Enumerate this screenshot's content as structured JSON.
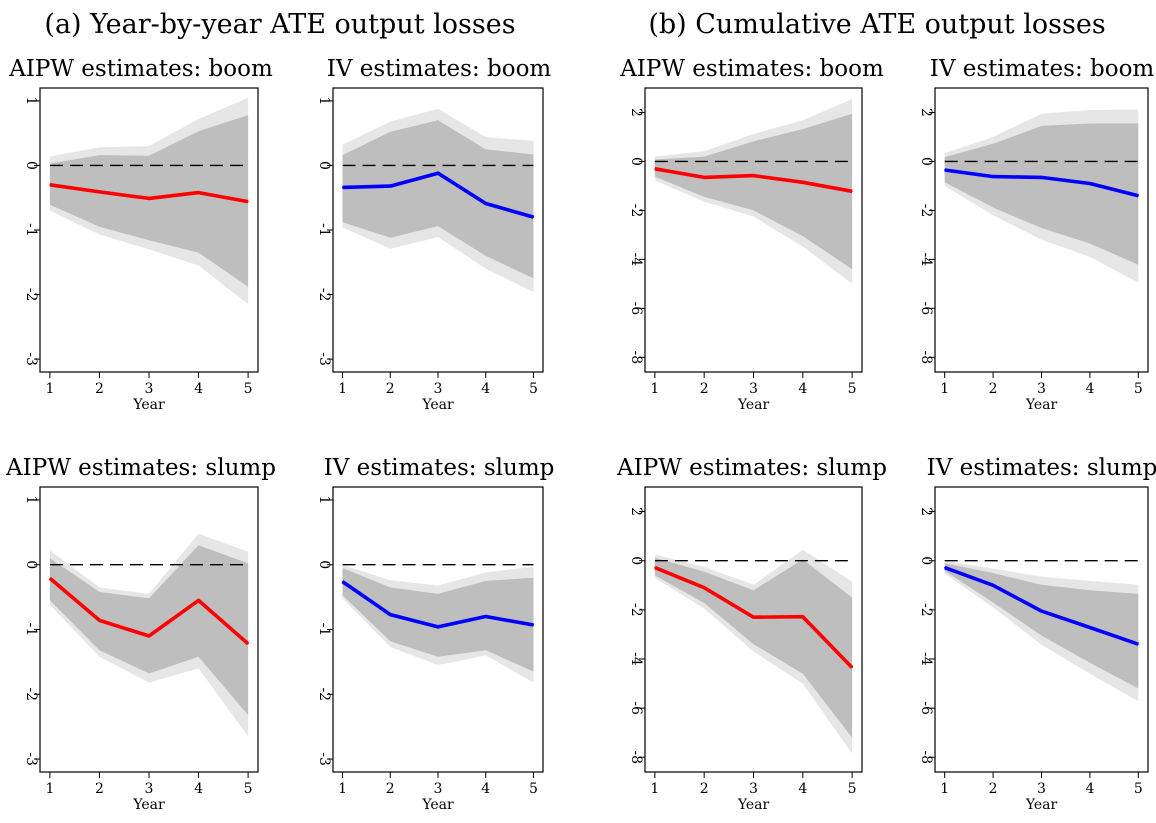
{
  "headers": [
    "(a) Year-by-year ATE output losses",
    "(b) Cumulative ATE output losses"
  ],
  "colors": {
    "aipw_line": "#ff0000",
    "iv_line": "#0000ff",
    "band_outer": "#e6e6e6",
    "band_inner": "#bebebe",
    "zero_line": "#000000"
  },
  "chart_data": [
    {
      "type": "line",
      "panel": "a",
      "title": "AIPW estimates: boom",
      "xlabel": "Year",
      "ylabel": "",
      "x": [
        1,
        2,
        3,
        4,
        5
      ],
      "xticks": [
        1,
        2,
        3,
        4,
        5
      ],
      "ylim": [
        -3.2,
        1.2
      ],
      "yticks": [
        1,
        0,
        -1,
        -2,
        -3
      ],
      "zero_line": true,
      "series": [
        {
          "values": [
            -0.3,
            -0.41,
            -0.51,
            -0.42,
            -0.56
          ],
          "color": "#ff0000"
        }
      ],
      "band_outer": {
        "lower": [
          -0.7,
          -1.07,
          -1.3,
          -1.55,
          -2.15
        ],
        "upper": [
          0.14,
          0.28,
          0.3,
          0.72,
          1.05
        ]
      },
      "band_inner": {
        "lower": [
          -0.61,
          -0.95,
          -1.16,
          -1.35,
          -1.88
        ],
        "upper": [
          0.03,
          0.16,
          0.15,
          0.53,
          0.78
        ]
      }
    },
    {
      "type": "line",
      "panel": "a",
      "title": "IV estimates: boom",
      "xlabel": "Year",
      "ylabel": "",
      "x": [
        1,
        2,
        3,
        4,
        5
      ],
      "xticks": [
        1,
        2,
        3,
        4,
        5
      ],
      "ylim": [
        -3.2,
        1.2
      ],
      "yticks": [
        1,
        0,
        -1,
        -2,
        -3
      ],
      "zero_line": true,
      "series": [
        {
          "values": [
            -0.34,
            -0.32,
            -0.12,
            -0.59,
            -0.8
          ],
          "color": "#0000ff"
        }
      ],
      "band_outer": {
        "lower": [
          -0.96,
          -1.29,
          -1.11,
          -1.6,
          -1.96
        ],
        "upper": [
          0.32,
          0.68,
          0.88,
          0.44,
          0.38
        ]
      },
      "band_inner": {
        "lower": [
          -0.88,
          -1.12,
          -0.94,
          -1.4,
          -1.75
        ],
        "upper": [
          0.16,
          0.52,
          0.7,
          0.25,
          0.17
        ]
      }
    },
    {
      "type": "line",
      "panel": "b",
      "title": "AIPW estimates: boom",
      "xlabel": "Year",
      "ylabel": "",
      "x": [
        1,
        2,
        3,
        4,
        5
      ],
      "xticks": [
        1,
        2,
        3,
        4,
        5
      ],
      "ylim": [
        -8.6,
        3.0
      ],
      "yticks": [
        2,
        0,
        -2,
        -4,
        -6,
        -8
      ],
      "zero_line": true,
      "series": [
        {
          "values": [
            -0.3,
            -0.65,
            -0.58,
            -0.85,
            -1.22
          ],
          "color": "#ff0000"
        }
      ],
      "band_outer": {
        "lower": [
          -0.78,
          -1.65,
          -2.25,
          -3.48,
          -5.0
        ],
        "upper": [
          0.2,
          0.42,
          1.12,
          1.68,
          2.55
        ]
      },
      "band_inner": {
        "lower": [
          -0.62,
          -1.45,
          -2.0,
          -3.05,
          -4.4
        ],
        "upper": [
          0.08,
          0.2,
          0.82,
          1.32,
          1.95
        ]
      }
    },
    {
      "type": "line",
      "panel": "b",
      "title": "IV estimates: boom",
      "xlabel": "Year",
      "ylabel": "",
      "x": [
        1,
        2,
        3,
        4,
        5
      ],
      "xticks": [
        1,
        2,
        3,
        4,
        5
      ],
      "ylim": [
        -8.6,
        3.0
      ],
      "yticks": [
        2,
        0,
        -2,
        -4,
        -6,
        -8
      ],
      "zero_line": true,
      "series": [
        {
          "values": [
            -0.35,
            -0.62,
            -0.65,
            -0.9,
            -1.4
          ],
          "color": "#0000ff"
        }
      ],
      "band_outer": {
        "lower": [
          -1.0,
          -2.2,
          -3.2,
          -3.9,
          -4.95
        ],
        "upper": [
          0.34,
          1.0,
          1.95,
          2.1,
          2.12
        ]
      },
      "band_inner": {
        "lower": [
          -0.85,
          -1.88,
          -2.72,
          -3.35,
          -4.22
        ],
        "upper": [
          0.18,
          0.72,
          1.45,
          1.55,
          1.55
        ]
      }
    },
    {
      "type": "line",
      "panel": "a",
      "title": "AIPW estimates: slump",
      "xlabel": "Year",
      "ylabel": "",
      "x": [
        1,
        2,
        3,
        4,
        5
      ],
      "xticks": [
        1,
        2,
        3,
        4,
        5
      ],
      "ylim": [
        -3.2,
        1.2
      ],
      "yticks": [
        1,
        0,
        -1,
        -2,
        -3
      ],
      "zero_line": true,
      "series": [
        {
          "values": [
            -0.21,
            -0.86,
            -1.1,
            -0.55,
            -1.22
          ],
          "color": "#ff0000"
        }
      ],
      "band_outer": {
        "lower": [
          -0.62,
          -1.42,
          -1.82,
          -1.6,
          -2.65
        ],
        "upper": [
          0.22,
          -0.35,
          -0.45,
          0.48,
          0.2
        ]
      },
      "band_inner": {
        "lower": [
          -0.55,
          -1.32,
          -1.68,
          -1.42,
          -2.32
        ],
        "upper": [
          0.1,
          -0.42,
          -0.52,
          0.3,
          0.02
        ]
      }
    },
    {
      "type": "line",
      "panel": "a",
      "title": "IV estimates: slump",
      "xlabel": "Year",
      "ylabel": "",
      "x": [
        1,
        2,
        3,
        4,
        5
      ],
      "xticks": [
        1,
        2,
        3,
        4,
        5
      ],
      "ylim": [
        -3.2,
        1.2
      ],
      "yticks": [
        1,
        0,
        -1,
        -2,
        -3
      ],
      "zero_line": true,
      "series": [
        {
          "values": [
            -0.26,
            -0.77,
            -0.96,
            -0.8,
            -0.93
          ],
          "color": "#0000ff"
        }
      ],
      "band_outer": {
        "lower": [
          -0.52,
          -1.27,
          -1.55,
          -1.4,
          -1.82
        ],
        "upper": [
          0.0,
          -0.24,
          -0.32,
          -0.12,
          -0.03
        ]
      },
      "band_inner": {
        "lower": [
          -0.47,
          -1.18,
          -1.42,
          -1.32,
          -1.65
        ],
        "upper": [
          -0.05,
          -0.35,
          -0.45,
          -0.25,
          -0.2
        ]
      }
    },
    {
      "type": "line",
      "panel": "b",
      "title": "AIPW estimates: slump",
      "xlabel": "Year",
      "ylabel": "",
      "x": [
        1,
        2,
        3,
        4,
        5
      ],
      "xticks": [
        1,
        2,
        3,
        4,
        5
      ],
      "ylim": [
        -8.6,
        3.0
      ],
      "yticks": [
        2,
        0,
        -2,
        -4,
        -6,
        -8
      ],
      "zero_line": true,
      "series": [
        {
          "values": [
            -0.28,
            -1.1,
            -2.3,
            -2.28,
            -4.35
          ],
          "color": "#ff0000"
        }
      ],
      "band_outer": {
        "lower": [
          -0.7,
          -1.95,
          -3.7,
          -5.0,
          -7.85
        ],
        "upper": [
          0.25,
          -0.25,
          -0.98,
          0.45,
          -0.85
        ]
      },
      "band_inner": {
        "lower": [
          -0.6,
          -1.72,
          -3.4,
          -4.6,
          -7.2
        ],
        "upper": [
          0.12,
          -0.45,
          -1.2,
          0.05,
          -1.5
        ]
      }
    },
    {
      "type": "line",
      "panel": "b",
      "title": "IV estimates: slump",
      "xlabel": "Year",
      "ylabel": "",
      "x": [
        1,
        2,
        3,
        4,
        5
      ],
      "xticks": [
        1,
        2,
        3,
        4,
        5
      ],
      "ylim": [
        -8.6,
        3.0
      ],
      "yticks": [
        2,
        0,
        -2,
        -4,
        -6,
        -8
      ],
      "zero_line": true,
      "series": [
        {
          "values": [
            -0.28,
            -1.0,
            -2.05,
            -2.72,
            -3.4
          ],
          "color": "#0000ff"
        }
      ],
      "band_outer": {
        "lower": [
          -0.52,
          -1.9,
          -3.42,
          -4.6,
          -5.72
        ],
        "upper": [
          0.0,
          -0.32,
          -0.65,
          -0.82,
          -0.98
        ]
      },
      "band_inner": {
        "lower": [
          -0.42,
          -1.7,
          -3.05,
          -4.15,
          -5.2
        ],
        "upper": [
          -0.1,
          -0.5,
          -0.98,
          -1.2,
          -1.35
        ]
      }
    }
  ]
}
